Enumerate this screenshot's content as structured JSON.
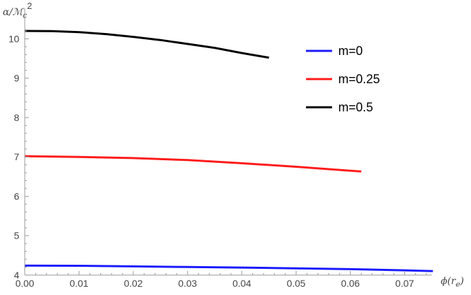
{
  "chart_data": {
    "type": "line",
    "xlabel": "ϕ(r_e)",
    "ylabel": "α/ℳ_c^2",
    "xlim": [
      0,
      0.075
    ],
    "ylim": [
      4,
      10.2
    ],
    "x_ticks": [
      0.0,
      0.01,
      0.02,
      0.03,
      0.04,
      0.05,
      0.06,
      0.07
    ],
    "x_tick_labels": [
      "0.00",
      "0.01",
      "0.02",
      "0.03",
      "0.04",
      "0.05",
      "0.06",
      "0.07"
    ],
    "y_ticks": [
      4,
      5,
      6,
      7,
      8,
      9,
      10
    ],
    "y_tick_labels": [
      "4",
      "5",
      "6",
      "7",
      "8",
      "9",
      "10"
    ],
    "grid": false,
    "legend_position": "top-right",
    "series": [
      {
        "name": "m=0",
        "color": "#1a1aff",
        "x": [
          0.0,
          0.01,
          0.02,
          0.03,
          0.04,
          0.05,
          0.06,
          0.07,
          0.0752
        ],
        "y": [
          4.24,
          4.235,
          4.22,
          4.205,
          4.19,
          4.17,
          4.15,
          4.12,
          4.1
        ]
      },
      {
        "name": "m=0.25",
        "color": "#ff1a1a",
        "x": [
          0.0,
          0.01,
          0.02,
          0.03,
          0.04,
          0.05,
          0.062
        ],
        "y": [
          7.02,
          7.0,
          6.97,
          6.92,
          6.84,
          6.75,
          6.63
        ]
      },
      {
        "name": "m=0.5",
        "color": "#000000",
        "x": [
          0.0,
          0.005,
          0.01,
          0.015,
          0.02,
          0.025,
          0.03,
          0.035,
          0.04,
          0.045
        ],
        "y": [
          10.2,
          10.195,
          10.17,
          10.12,
          10.05,
          9.97,
          9.87,
          9.77,
          9.64,
          9.52
        ]
      }
    ]
  }
}
